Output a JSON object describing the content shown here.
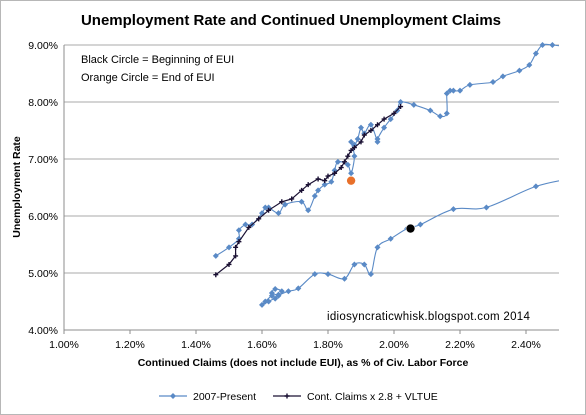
{
  "chart_data": {
    "type": "scatter",
    "title": "Unemployment Rate and Continued Unemployment Claims",
    "xlabel": "Continued  Claims (does not include EUI), as % of Civ. Labor Force",
    "ylabel": "Unemployment Rate",
    "xlim": [
      1.0,
      2.5
    ],
    "ylim": [
      4.0,
      9.0
    ],
    "x_ticks": [
      1.0,
      1.2,
      1.4,
      1.6,
      1.8,
      2.0,
      2.2,
      2.4
    ],
    "y_ticks": [
      4.0,
      5.0,
      6.0,
      7.0,
      8.0,
      9.0
    ],
    "x_tick_labels": [
      "1.00%",
      "1.20%",
      "1.40%",
      "1.60%",
      "1.80%",
      "2.00%",
      "2.20%",
      "2.40%"
    ],
    "y_tick_labels": [
      "4.00%",
      "5.00%",
      "6.00%",
      "7.00%",
      "8.00%",
      "9.00%"
    ],
    "grid": "horizontal",
    "legend_position": "bottom",
    "annotations": [
      "Black Circle = Beginning of EUI",
      "Orange Circle = End of EUI"
    ],
    "credit": "idiosyncraticwhisk.blogspot.com  2014",
    "markers": [
      {
        "label": "Beginning of EUI",
        "x": 2.05,
        "y": 5.78,
        "color": "#000000"
      },
      {
        "label": "End of EUI",
        "x": 1.87,
        "y": 6.62,
        "color": "#e8702a"
      }
    ],
    "series": [
      {
        "name": "2007-Present",
        "color": "#5a8ac6",
        "marker": "diamond",
        "smooth": true,
        "points": [
          [
            2.55,
            6.67
          ],
          [
            2.43,
            6.52
          ],
          [
            2.28,
            6.15
          ],
          [
            2.18,
            6.12
          ],
          [
            2.08,
            5.85
          ],
          [
            2.04,
            5.78
          ],
          [
            1.99,
            5.6
          ],
          [
            1.95,
            5.45
          ],
          [
            1.93,
            4.98
          ],
          [
            1.91,
            5.15
          ],
          [
            1.88,
            5.15
          ],
          [
            1.85,
            4.9
          ],
          [
            1.8,
            4.98
          ],
          [
            1.76,
            4.98
          ],
          [
            1.71,
            4.73
          ],
          [
            1.68,
            4.68
          ],
          [
            1.65,
            4.62
          ],
          [
            1.63,
            4.65
          ],
          [
            1.64,
            4.72
          ],
          [
            1.66,
            4.68
          ],
          [
            1.65,
            4.6
          ],
          [
            1.62,
            4.5
          ],
          [
            1.6,
            4.44
          ],
          [
            1.61,
            4.5
          ],
          [
            1.63,
            4.6
          ],
          [
            1.64,
            4.55
          ]
        ]
      },
      {
        "name": "2007-Present",
        "color": "#5a8ac6",
        "marker": "diamond",
        "smooth": true,
        "points": [
          [
            1.46,
            5.3
          ],
          [
            1.5,
            5.45
          ],
          [
            1.53,
            5.6
          ],
          [
            1.53,
            5.75
          ],
          [
            1.55,
            5.85
          ],
          [
            1.57,
            5.85
          ],
          [
            1.6,
            6.05
          ],
          [
            1.61,
            6.15
          ],
          [
            1.62,
            6.15
          ],
          [
            1.65,
            6.05
          ],
          [
            1.67,
            6.2
          ],
          [
            1.72,
            6.25
          ],
          [
            1.74,
            6.1
          ],
          [
            1.76,
            6.35
          ],
          [
            1.77,
            6.45
          ],
          [
            1.79,
            6.55
          ],
          [
            1.81,
            6.6
          ],
          [
            1.82,
            6.8
          ],
          [
            1.83,
            6.95
          ],
          [
            1.86,
            6.9
          ],
          [
            1.87,
            6.75
          ],
          [
            1.88,
            7.05
          ],
          [
            1.87,
            7.3
          ],
          [
            1.88,
            7.25
          ],
          [
            1.89,
            7.35
          ],
          [
            1.9,
            7.55
          ],
          [
            1.91,
            7.45
          ],
          [
            1.93,
            7.6
          ],
          [
            1.95,
            7.3
          ],
          [
            1.95,
            7.35
          ],
          [
            1.97,
            7.55
          ],
          [
            1.99,
            7.7
          ],
          [
            2.01,
            7.85
          ],
          [
            2.02,
            8.0
          ],
          [
            2.06,
            7.95
          ],
          [
            2.11,
            7.85
          ],
          [
            2.14,
            7.75
          ],
          [
            2.16,
            7.8
          ],
          [
            2.16,
            8.15
          ],
          [
            2.17,
            8.2
          ],
          [
            2.18,
            8.2
          ],
          [
            2.2,
            8.2
          ],
          [
            2.23,
            8.3
          ],
          [
            2.3,
            8.35
          ],
          [
            2.33,
            8.45
          ],
          [
            2.38,
            8.55
          ],
          [
            2.41,
            8.65
          ],
          [
            2.43,
            8.85
          ],
          [
            2.45,
            9.0
          ],
          [
            2.48,
            9.0
          ],
          [
            2.55,
            8.95
          ]
        ]
      },
      {
        "name": "Cont. Claims x 2.8 + VLTUE",
        "color": "#1a1033",
        "marker": "plus",
        "smooth": false,
        "points": [
          [
            1.46,
            4.97
          ],
          [
            1.5,
            5.15
          ],
          [
            1.52,
            5.3
          ],
          [
            1.52,
            5.45
          ],
          [
            1.53,
            5.55
          ],
          [
            1.56,
            5.8
          ],
          [
            1.59,
            5.95
          ],
          [
            1.62,
            6.1
          ],
          [
            1.66,
            6.25
          ],
          [
            1.69,
            6.3
          ],
          [
            1.72,
            6.45
          ],
          [
            1.74,
            6.55
          ],
          [
            1.77,
            6.65
          ],
          [
            1.79,
            6.62
          ],
          [
            1.8,
            6.7
          ],
          [
            1.82,
            6.75
          ],
          [
            1.84,
            6.85
          ],
          [
            1.85,
            6.95
          ],
          [
            1.86,
            7.05
          ],
          [
            1.87,
            7.15
          ],
          [
            1.88,
            7.2
          ],
          [
            1.9,
            7.3
          ],
          [
            1.91,
            7.42
          ],
          [
            1.93,
            7.5
          ],
          [
            1.95,
            7.6
          ],
          [
            1.97,
            7.7
          ],
          [
            2.0,
            7.8
          ],
          [
            2.02,
            7.92
          ]
        ]
      }
    ],
    "legend": [
      {
        "label": "2007-Present",
        "color": "#5a8ac6",
        "marker": "diamond"
      },
      {
        "label": "Cont. Claims x 2.8 + VLTUE",
        "color": "#1a1033",
        "marker": "plus"
      }
    ]
  }
}
